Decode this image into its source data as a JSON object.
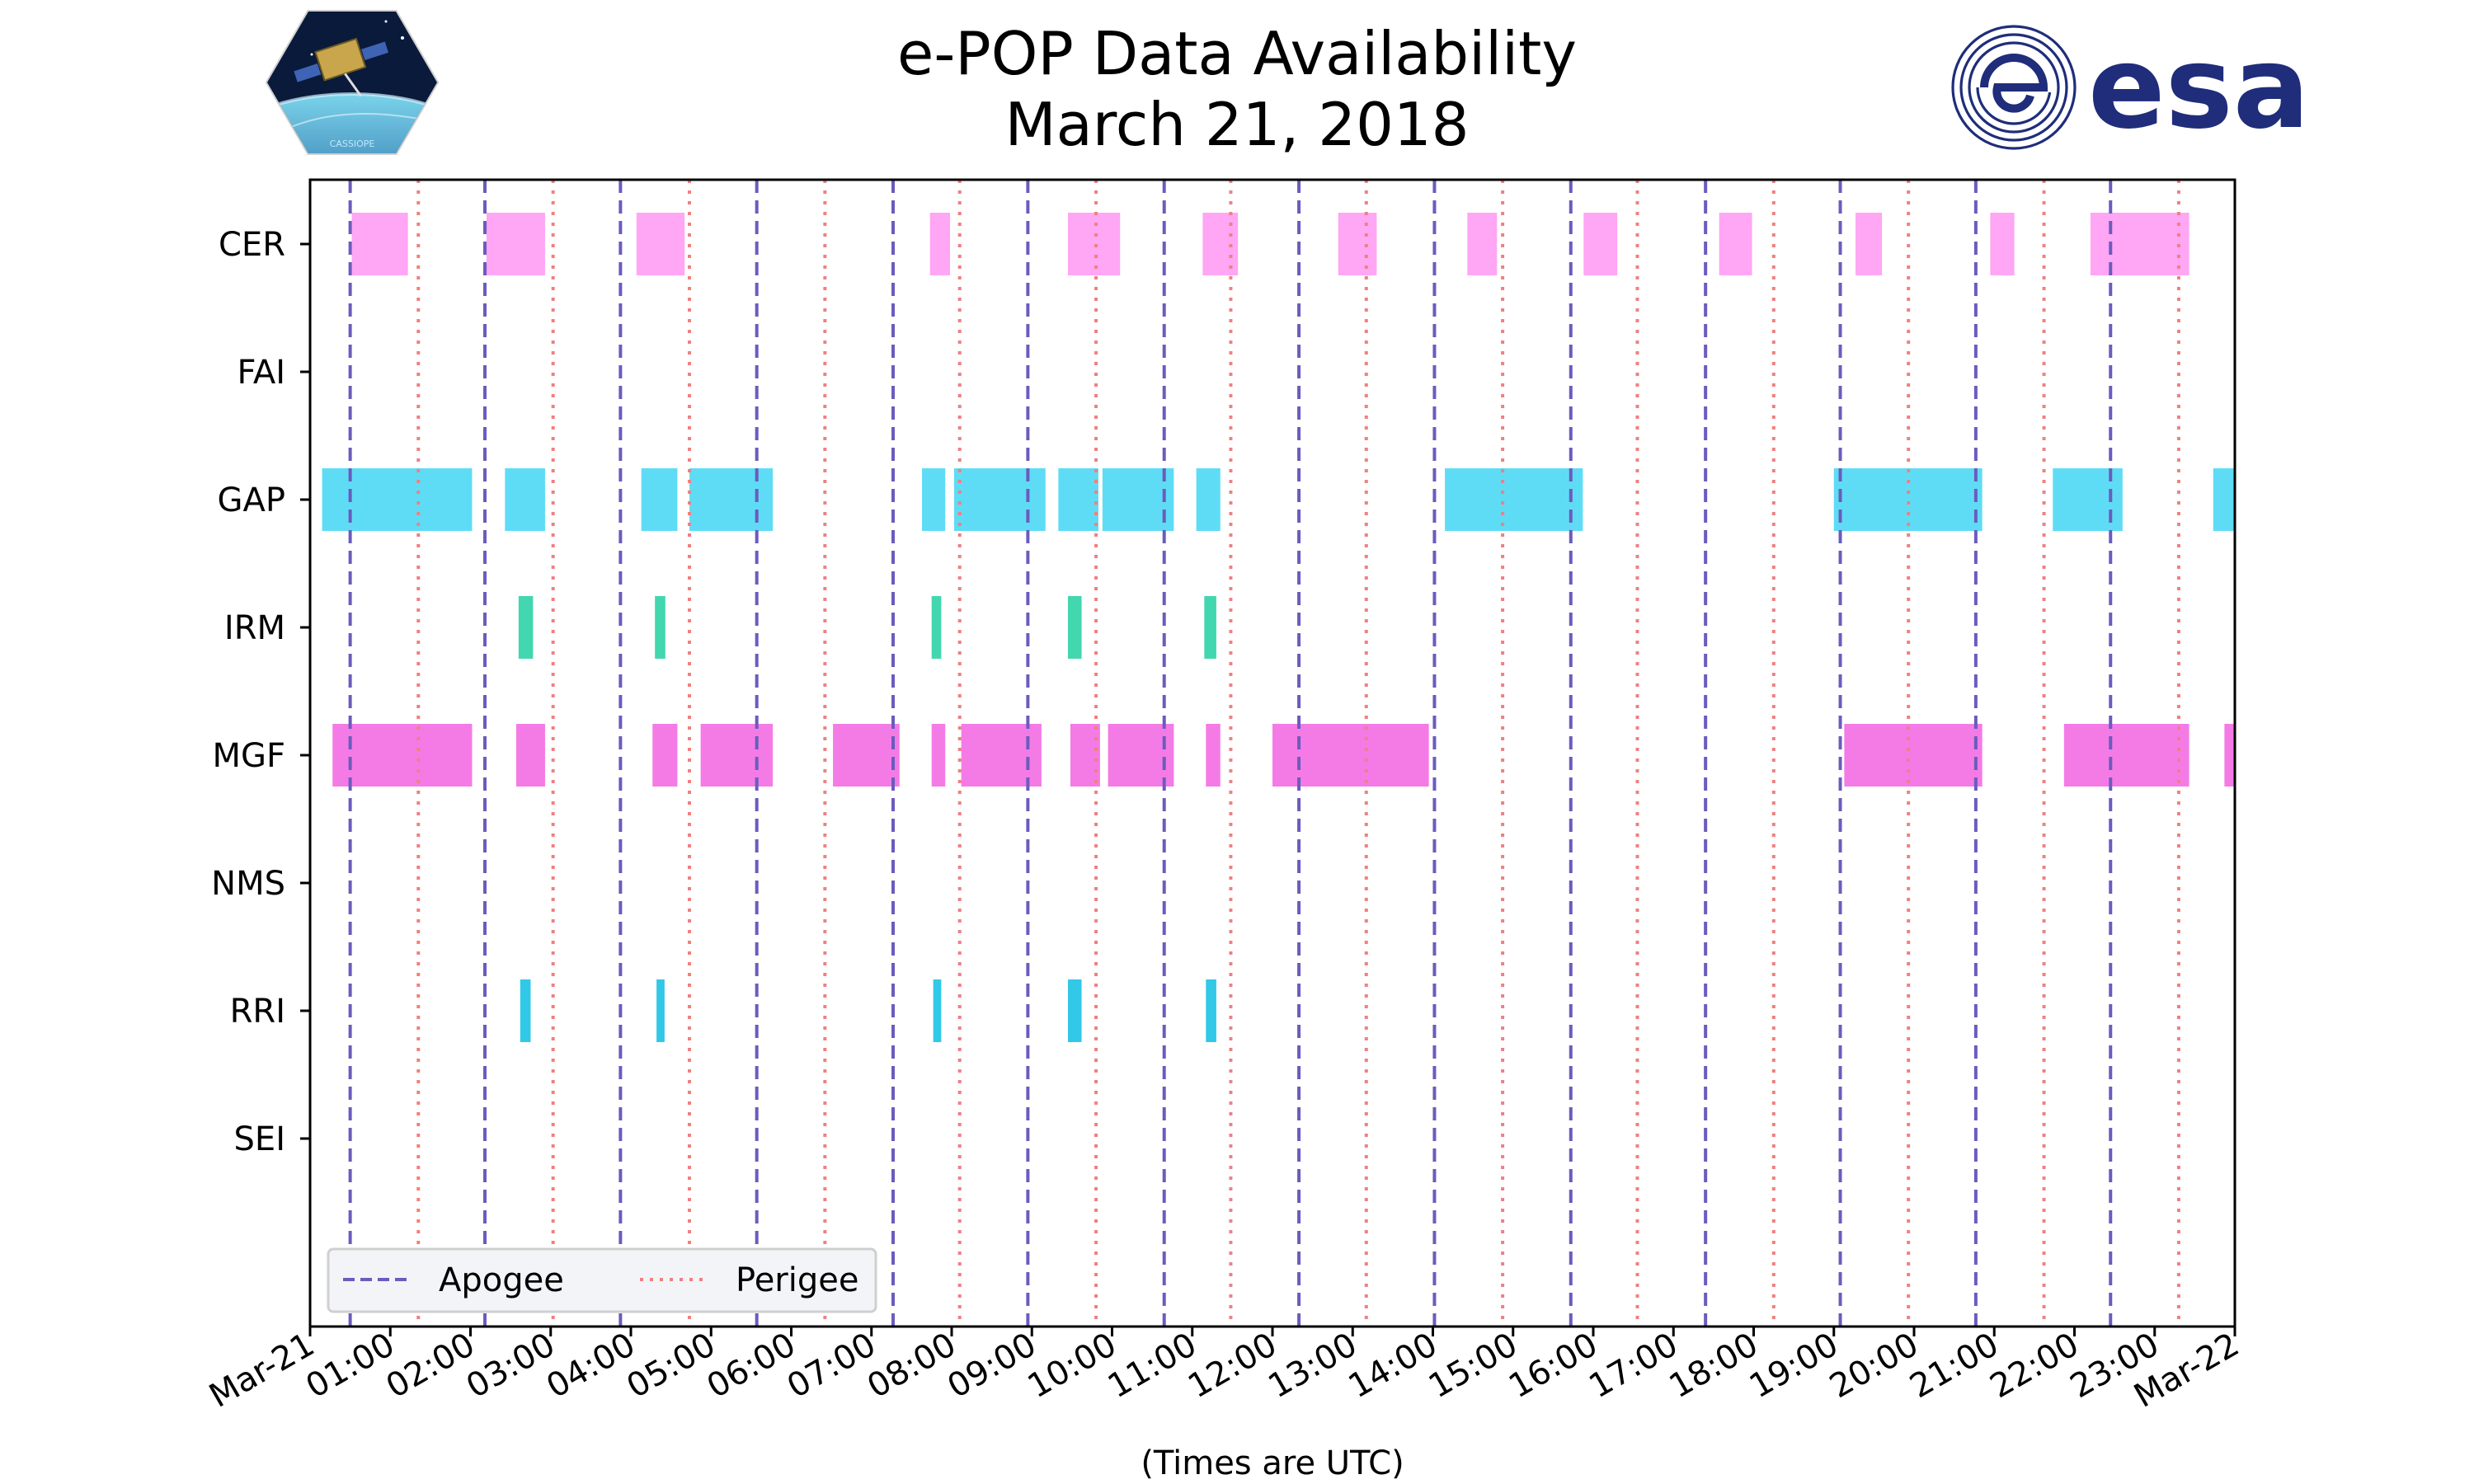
{
  "chart_data": {
    "type": "timeline",
    "title": "e-POP Data Availability",
    "subtitle": "March 21, 2018",
    "xlabel": "(Times are UTC)",
    "x_range_hours": [
      0,
      24
    ],
    "x_tick_labels": [
      "Mar-21",
      "01:00",
      "02:00",
      "03:00",
      "04:00",
      "05:00",
      "06:00",
      "07:00",
      "08:00",
      "09:00",
      "10:00",
      "11:00",
      "12:00",
      "13:00",
      "14:00",
      "15:00",
      "16:00",
      "17:00",
      "18:00",
      "19:00",
      "20:00",
      "21:00",
      "22:00",
      "23:00",
      "Mar-22"
    ],
    "instruments": [
      {
        "name": "CER",
        "color": "#ffa6f5",
        "intervals": [
          [
            0.52,
            1.22
          ],
          [
            2.2,
            2.93
          ],
          [
            4.07,
            4.67
          ],
          [
            7.73,
            7.98
          ],
          [
            9.45,
            10.1
          ],
          [
            11.13,
            11.57
          ],
          [
            12.82,
            13.3
          ],
          [
            14.43,
            14.8
          ],
          [
            15.88,
            16.3
          ],
          [
            17.57,
            17.98
          ],
          [
            19.27,
            19.6
          ],
          [
            20.95,
            21.25
          ],
          [
            22.2,
            23.43
          ]
        ]
      },
      {
        "name": "FAI",
        "color": "#888888",
        "intervals": []
      },
      {
        "name": "GAP",
        "color": "#5fdcf5",
        "intervals": [
          [
            0.15,
            2.02
          ],
          [
            2.43,
            2.93
          ],
          [
            4.13,
            4.58
          ],
          [
            4.73,
            5.77
          ],
          [
            7.63,
            7.92
          ],
          [
            8.03,
            9.17
          ],
          [
            9.33,
            9.83
          ],
          [
            9.88,
            10.77
          ],
          [
            11.05,
            11.35
          ],
          [
            14.15,
            15.87
          ],
          [
            19.0,
            20.85
          ],
          [
            21.73,
            22.6
          ],
          [
            23.73,
            24.0
          ]
        ]
      },
      {
        "name": "IRM",
        "color": "#42d7ae",
        "intervals": [
          [
            2.6,
            2.78
          ],
          [
            4.3,
            4.43
          ],
          [
            7.75,
            7.87
          ],
          [
            9.45,
            9.62
          ],
          [
            11.15,
            11.3
          ]
        ]
      },
      {
        "name": "MGF",
        "color": "#f47be6",
        "intervals": [
          [
            0.28,
            2.02
          ],
          [
            2.57,
            2.93
          ],
          [
            4.27,
            4.58
          ],
          [
            4.87,
            5.77
          ],
          [
            6.52,
            7.35
          ],
          [
            7.75,
            7.92
          ],
          [
            8.12,
            9.12
          ],
          [
            9.48,
            9.85
          ],
          [
            9.95,
            10.77
          ],
          [
            11.17,
            11.35
          ],
          [
            12.0,
            13.95
          ],
          [
            19.13,
            20.85
          ],
          [
            21.87,
            23.43
          ],
          [
            23.87,
            24.0
          ]
        ]
      },
      {
        "name": "NMS",
        "color": "#888888",
        "intervals": []
      },
      {
        "name": "RRI",
        "color": "#32c8e8",
        "intervals": [
          [
            2.62,
            2.75
          ],
          [
            4.32,
            4.42
          ],
          [
            7.77,
            7.87
          ],
          [
            9.45,
            9.62
          ],
          [
            11.17,
            11.3
          ]
        ]
      },
      {
        "name": "SEI",
        "color": "#888888",
        "intervals": []
      }
    ],
    "apogee_hours": [
      0.5,
      2.18,
      3.87,
      5.57,
      7.27,
      8.95,
      10.65,
      12.33,
      14.02,
      15.72,
      17.4,
      19.08,
      20.77,
      22.45
    ],
    "perigee_hours": [
      1.35,
      3.03,
      4.73,
      6.42,
      8.1,
      9.8,
      11.48,
      13.17,
      14.87,
      16.55,
      18.25,
      19.93,
      21.62,
      23.3
    ],
    "legend": {
      "location": "lower-left",
      "apogee_label": "Apogee",
      "perigee_label": "Perigee"
    },
    "colors": {
      "apogee": "#6a5cbd",
      "perigee": "#f08080"
    }
  },
  "logos": {
    "left_icon": "cassiope-satellite-logo",
    "left_text": "CASSIOPE",
    "right_icon": "esa-logo",
    "right_text": "esa"
  }
}
